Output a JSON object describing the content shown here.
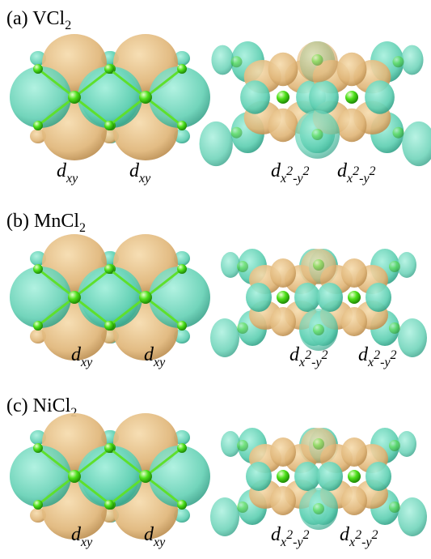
{
  "panels": [
    {
      "label": "(a) VCl",
      "label_sub": "2",
      "orbitals": [
        {
          "main": "d",
          "parts": [
            "xy"
          ]
        },
        {
          "main": "d",
          "parts": [
            "xy"
          ]
        },
        {
          "main": "d",
          "parts": [
            "x",
            "2",
            "-y",
            "2"
          ]
        },
        {
          "main": "d",
          "parts": [
            "x",
            "2",
            "-y",
            "2"
          ]
        }
      ]
    },
    {
      "label": "(b) MnCl",
      "label_sub": "2",
      "orbitals": [
        {
          "main": "d",
          "parts": [
            "xy"
          ]
        },
        {
          "main": "d",
          "parts": [
            "xy"
          ]
        },
        {
          "main": "d",
          "parts": [
            "x",
            "2",
            "-y",
            "2"
          ]
        },
        {
          "main": "d",
          "parts": [
            "x",
            "2",
            "-y",
            "2"
          ]
        }
      ]
    },
    {
      "label": "(c) NiCl",
      "label_sub": "2",
      "orbitals": [
        {
          "main": "d",
          "parts": [
            "xy"
          ]
        },
        {
          "main": "d",
          "parts": [
            "xy"
          ]
        },
        {
          "main": "d",
          "parts": [
            "x",
            "2",
            "-y",
            "2"
          ]
        },
        {
          "main": "d",
          "parts": [
            "x",
            "2",
            "-y",
            "2"
          ]
        }
      ]
    }
  ]
}
